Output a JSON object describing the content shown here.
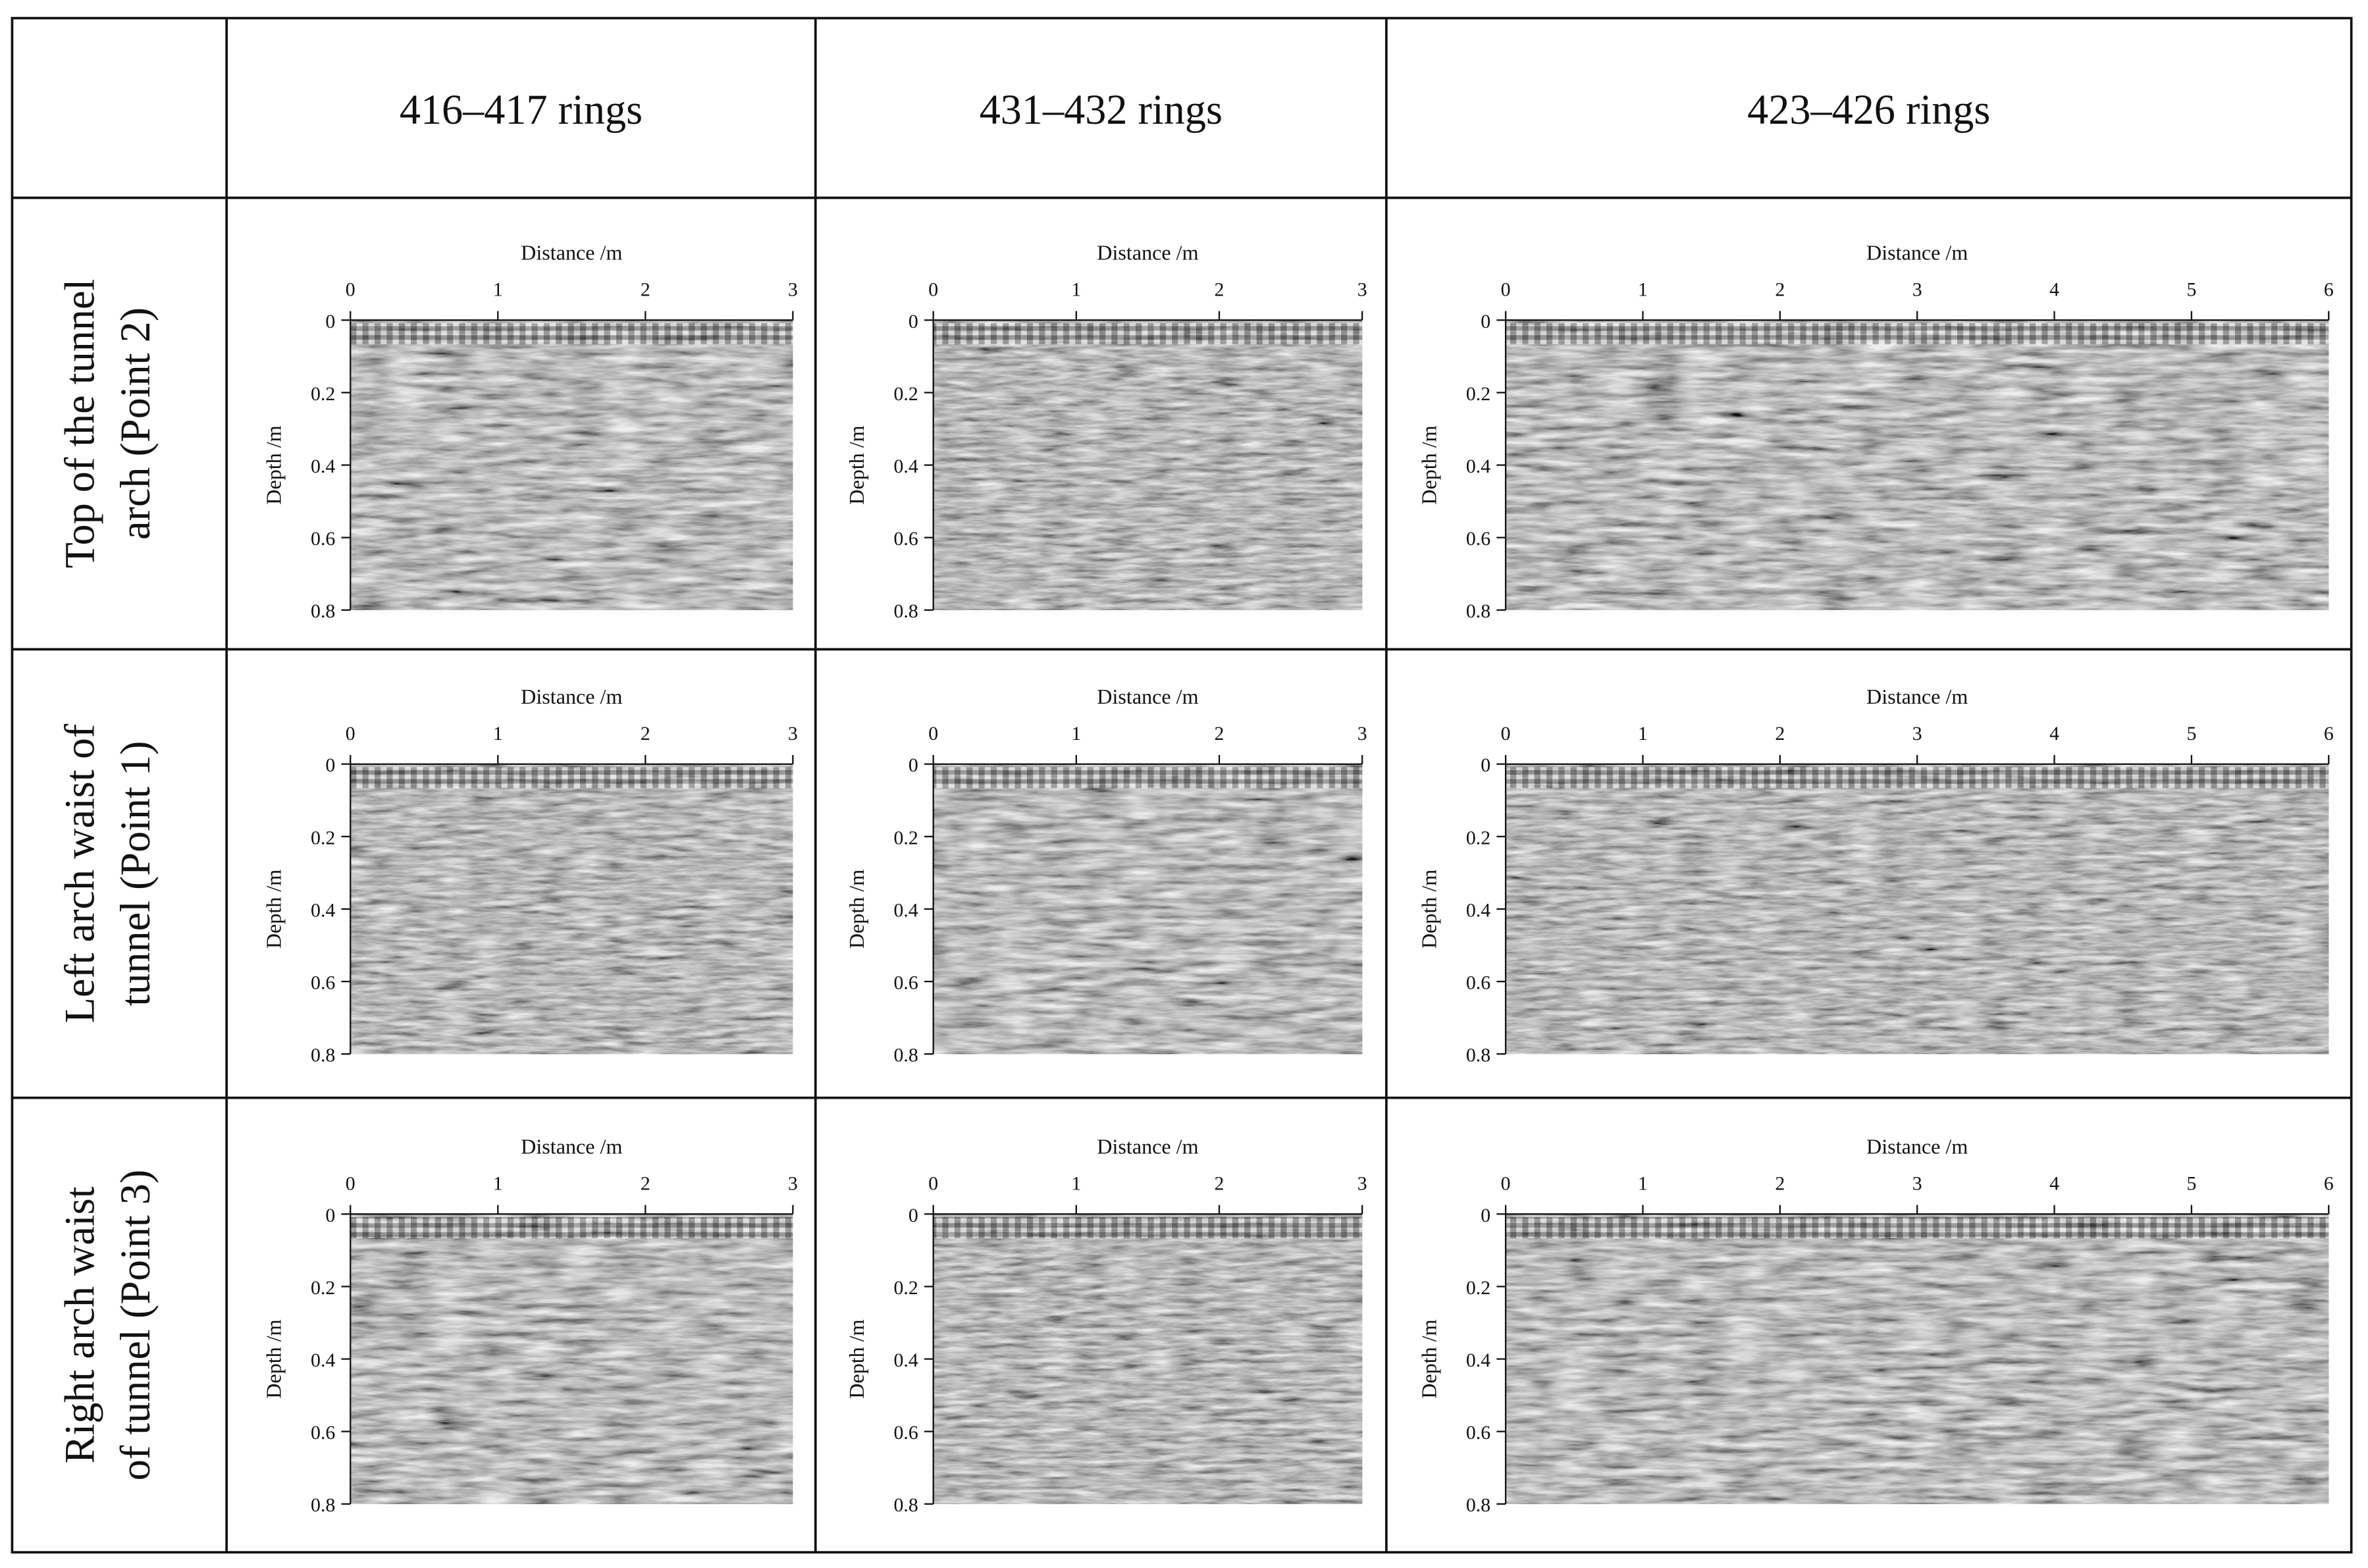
{
  "table": {
    "columns": [
      {
        "title": "416–417 rings",
        "xticks": [
          0,
          1,
          2,
          3
        ]
      },
      {
        "title": "431–432 rings",
        "xticks": [
          0,
          1,
          2,
          3
        ]
      },
      {
        "title": "423–426 rings",
        "xticks": [
          0,
          1,
          2,
          3,
          4,
          5,
          6
        ]
      }
    ],
    "rows": [
      {
        "label_lines": [
          "Top of the tunnel",
          "arch (Point 2)"
        ]
      },
      {
        "label_lines": [
          "Left arch waist of",
          "tunnel (Point 1)"
        ]
      },
      {
        "label_lines": [
          "Right arch waist",
          "of tunnel (Point 3)"
        ]
      }
    ],
    "x_label": "Distance /m",
    "y_label": "Depth /m",
    "yticks": [
      0,
      0.2,
      0.4,
      0.6,
      0.8
    ]
  }
}
